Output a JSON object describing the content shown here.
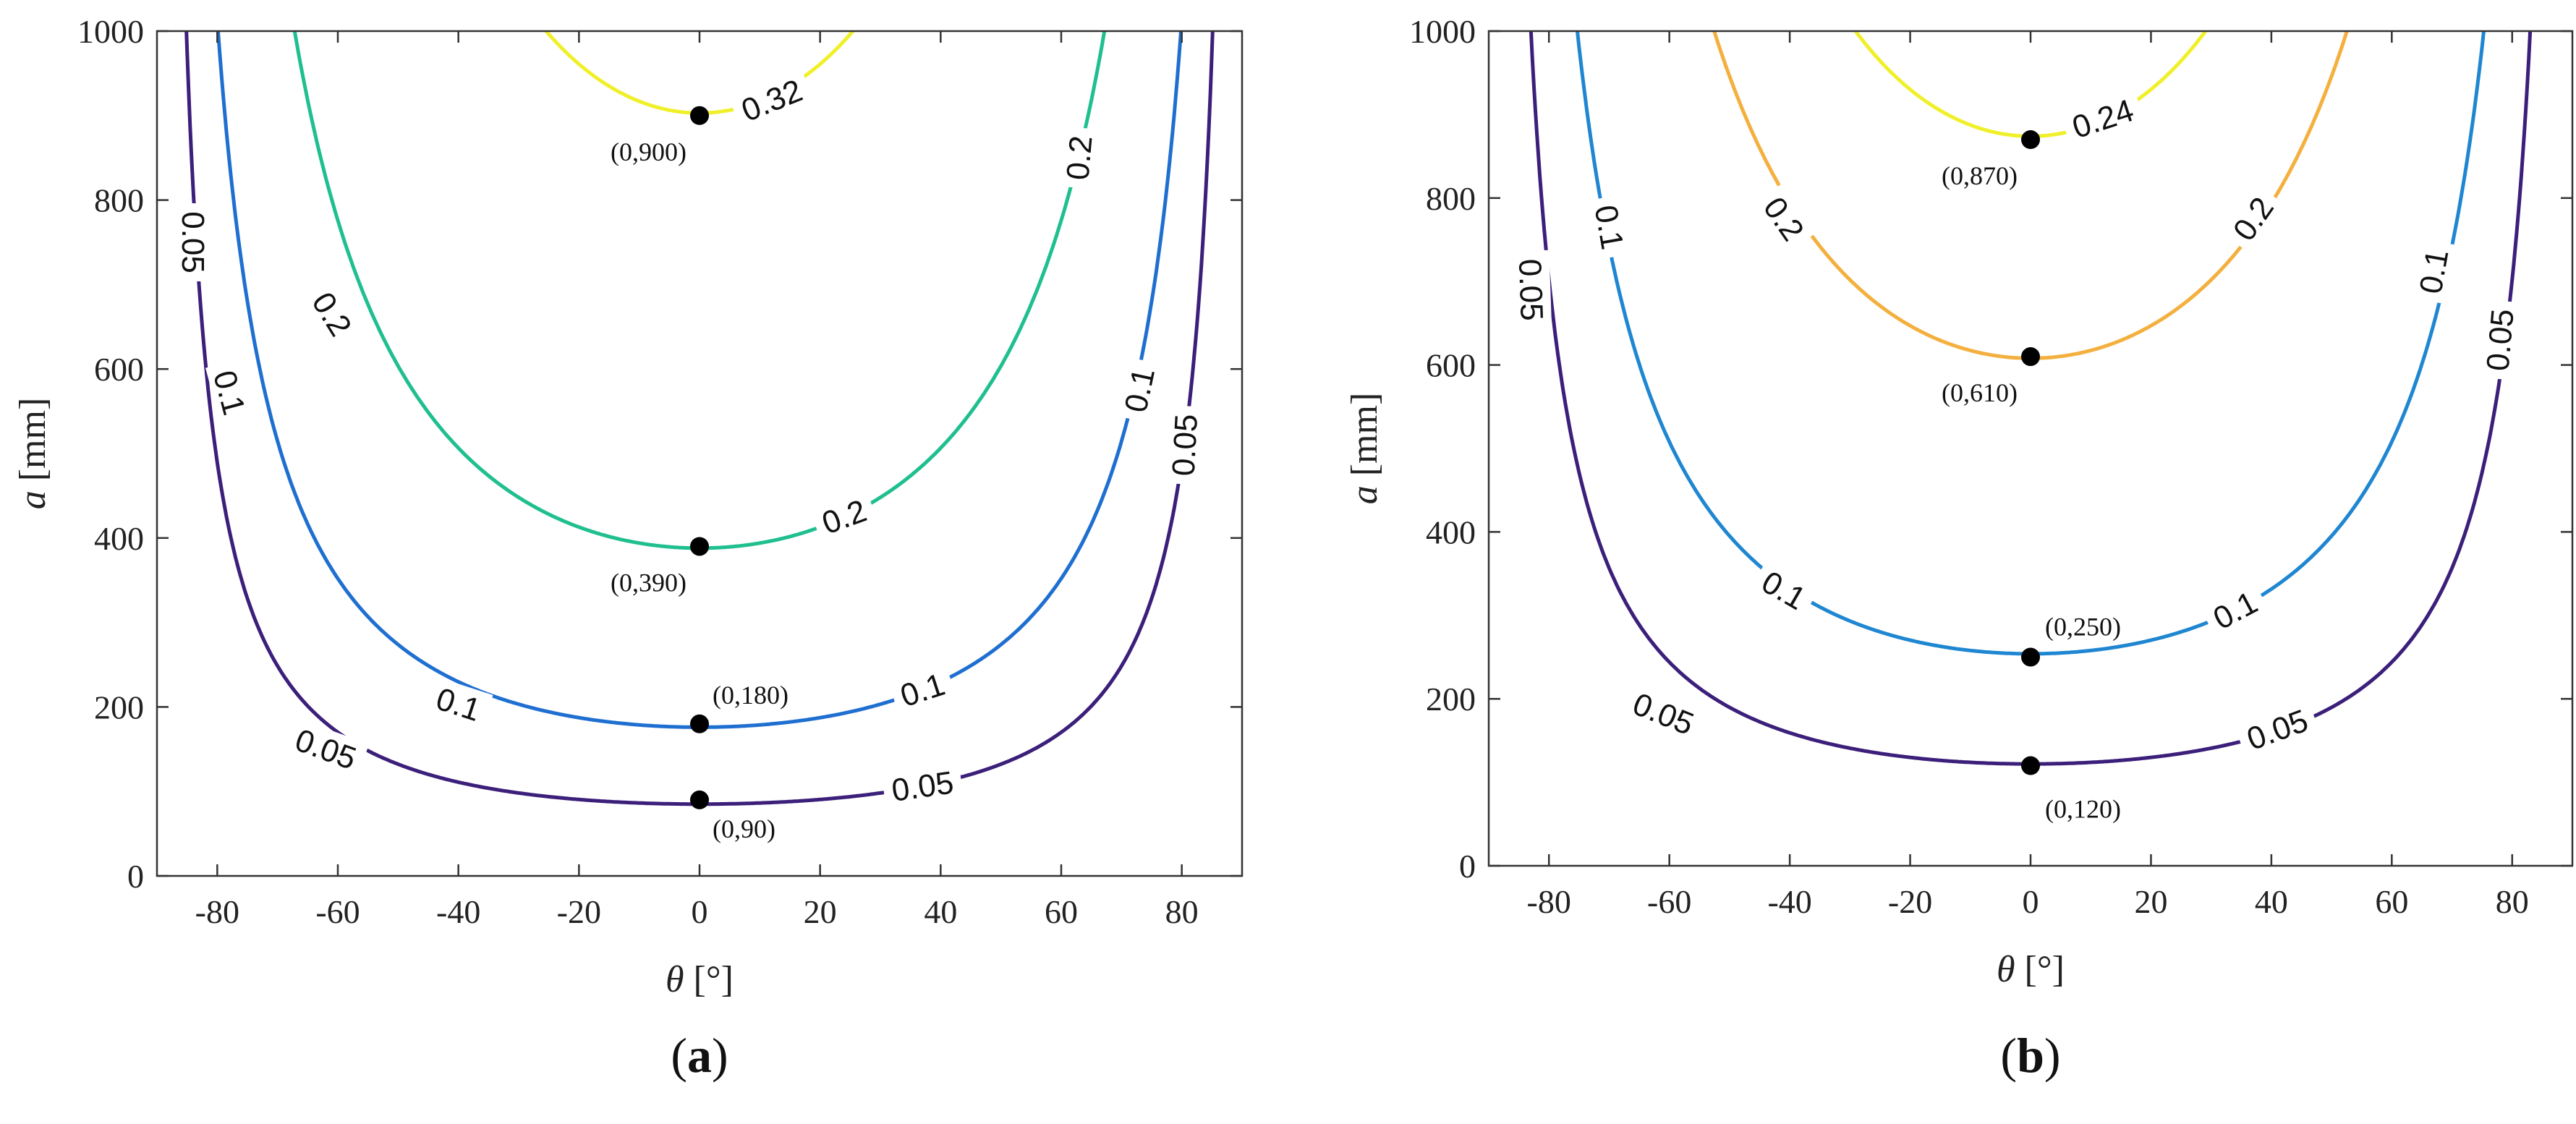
{
  "chart_data": [
    {
      "type": "contour",
      "panel_label": "a",
      "xlabel_symbol": "θ",
      "xlabel_unit": " [°]",
      "ylabel_symbol": "a",
      "ylabel_unit": " [mm]",
      "xlim": [
        -90,
        90
      ],
      "ylim": [
        0,
        1000
      ],
      "xticks": [
        -80,
        -60,
        -40,
        -20,
        0,
        20,
        40,
        60,
        80
      ],
      "xtick_labels": [
        "-80",
        "-60",
        "-40",
        "-20",
        "0",
        "20",
        "40",
        "60",
        "80"
      ],
      "yticks": [
        0,
        200,
        400,
        600,
        800,
        1000
      ],
      "ytick_labels": [
        "0",
        "200",
        "400",
        "600",
        "800",
        "1000"
      ],
      "contours": [
        {
          "level_label": "0.05",
          "min_a": 85,
          "color": "#3b1f7a"
        },
        {
          "level_label": "0.1",
          "min_a": 176,
          "color": "#1f6fd1"
        },
        {
          "level_label": "0.2",
          "min_a": 388,
          "color": "#1fbf8f"
        },
        {
          "level_label": "0.32",
          "min_a": 903,
          "color": "#f0f02a"
        }
      ],
      "contour_labels": [
        {
          "text": "0.05",
          "x": -84,
          "y": 750,
          "rot": 90
        },
        {
          "text": "0.05",
          "x": -62,
          "y": 150,
          "rot": 20
        },
        {
          "text": "0.05",
          "x": 37,
          "y": 106,
          "rot": -8
        },
        {
          "text": "0.05",
          "x": 80.5,
          "y": 510,
          "rot": -87
        },
        {
          "text": "0.1",
          "x": -78,
          "y": 572,
          "rot": 75
        },
        {
          "text": "0.1",
          "x": -40,
          "y": 203,
          "rot": 18
        },
        {
          "text": "0.1",
          "x": 37,
          "y": 220,
          "rot": -18
        },
        {
          "text": "0.1",
          "x": 73,
          "y": 575,
          "rot": -78
        },
        {
          "text": "0.2",
          "x": -61,
          "y": 665,
          "rot": 58
        },
        {
          "text": "0.2",
          "x": 24,
          "y": 425,
          "rot": -20
        },
        {
          "text": "0.2",
          "x": 63,
          "y": 850,
          "rot": -85
        },
        {
          "text": "0.32",
          "x": 12,
          "y": 918,
          "rot": -22
        }
      ],
      "points": [
        {
          "x": 0,
          "y": 900,
          "label": "(0,900)"
        },
        {
          "x": 0,
          "y": 390,
          "label": "(0,390)"
        },
        {
          "x": 0,
          "y": 180,
          "label": "(0,180)"
        },
        {
          "x": 0,
          "y": 90,
          "label": "(0,90)"
        }
      ]
    },
    {
      "type": "contour",
      "panel_label": "b",
      "xlabel_symbol": "θ",
      "xlabel_unit": " [°]",
      "ylabel_symbol": "a",
      "ylabel_unit": " [mm]",
      "xlim": [
        -90,
        90
      ],
      "ylim": [
        0,
        1000
      ],
      "xticks": [
        -80,
        -60,
        -40,
        -20,
        0,
        20,
        40,
        60,
        80
      ],
      "xtick_labels": [
        "-80",
        "-60",
        "-40",
        "-20",
        "0",
        "20",
        "40",
        "60",
        "80"
      ],
      "yticks": [
        0,
        200,
        400,
        600,
        800,
        1000
      ],
      "ytick_labels": [
        "0",
        "200",
        "400",
        "600",
        "800",
        "1000"
      ],
      "contours": [
        {
          "level_label": "0.05",
          "min_a": 122,
          "color": "#3b1f7a"
        },
        {
          "level_label": "0.1",
          "min_a": 254,
          "color": "#1f86d1"
        },
        {
          "level_label": "0.2",
          "min_a": 608,
          "color": "#f4b03e"
        },
        {
          "level_label": "0.24",
          "min_a": 874,
          "color": "#f0f02a"
        }
      ],
      "contour_labels": [
        {
          "text": "0.05",
          "x": -83,
          "y": 690,
          "rot": 88
        },
        {
          "text": "0.05",
          "x": -61,
          "y": 182,
          "rot": 22
        },
        {
          "text": "0.05",
          "x": 41,
          "y": 163,
          "rot": -20
        },
        {
          "text": "0.05",
          "x": 78,
          "y": 630,
          "rot": -85
        },
        {
          "text": "0.1",
          "x": -70,
          "y": 765,
          "rot": 80
        },
        {
          "text": "0.1",
          "x": -41,
          "y": 330,
          "rot": 30
        },
        {
          "text": "0.1",
          "x": 34,
          "y": 306,
          "rot": -28
        },
        {
          "text": "0.1",
          "x": 67,
          "y": 712,
          "rot": -80
        },
        {
          "text": "0.2",
          "x": -41,
          "y": 775,
          "rot": 55
        },
        {
          "text": "0.2",
          "x": 37,
          "y": 775,
          "rot": -55
        },
        {
          "text": "0.24",
          "x": 12,
          "y": 895,
          "rot": -18
        }
      ],
      "points": [
        {
          "x": 0,
          "y": 870,
          "label": "(0,870)"
        },
        {
          "x": 0,
          "y": 610,
          "label": "(0,610)"
        },
        {
          "x": 0,
          "y": 250,
          "label": "(0,250)"
        },
        {
          "x": 0,
          "y": 120,
          "label": "(0,120)"
        }
      ]
    }
  ]
}
